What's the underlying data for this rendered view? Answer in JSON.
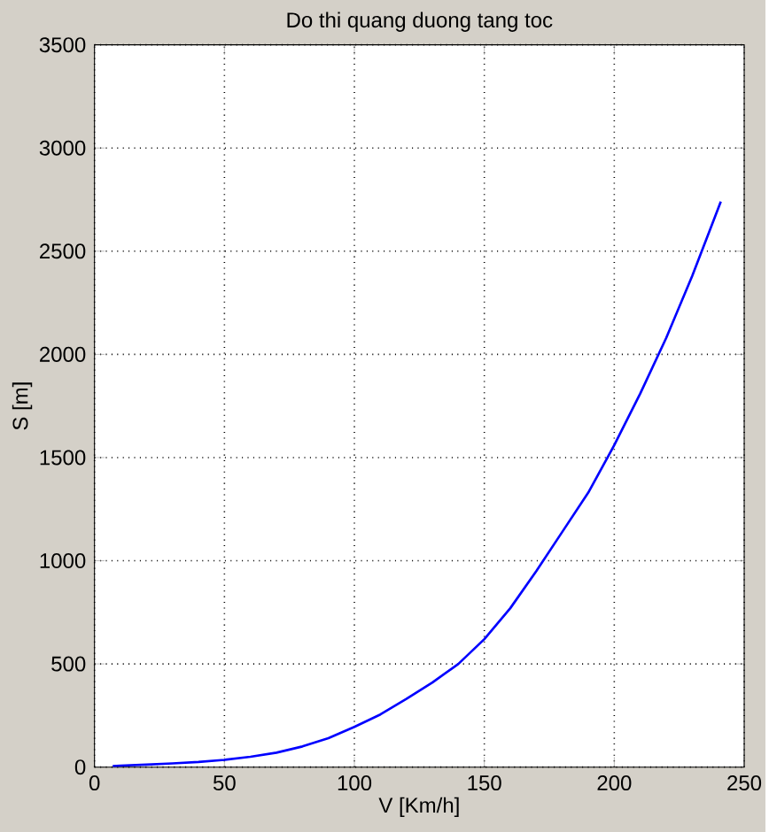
{
  "chart_data": {
    "type": "line",
    "title": "Do thi quang duong tang toc",
    "xlabel": "V [Km/h]",
    "ylabel": "S [m]",
    "x": [
      7,
      10,
      20,
      30,
      40,
      50,
      60,
      70,
      80,
      90,
      100,
      110,
      120,
      130,
      140,
      150,
      160,
      170,
      180,
      190,
      200,
      210,
      220,
      230,
      241
    ],
    "series": [
      {
        "color": "#0000ff",
        "values": [
          5,
          7,
          12,
          18,
          25,
          35,
          50,
          70,
          100,
          140,
          195,
          255,
          330,
          410,
          500,
          620,
          770,
          950,
          1140,
          1330,
          1560,
          1810,
          2080,
          2380,
          2740
        ]
      }
    ],
    "xlim": [
      0,
      250
    ],
    "ylim": [
      0,
      3500
    ],
    "xticks": [
      0,
      50,
      100,
      150,
      200,
      250
    ],
    "yticks": [
      0,
      500,
      1000,
      1500,
      2000,
      2500,
      3000,
      3500
    ],
    "grid": true,
    "line_style": "solid",
    "marker": "none",
    "legend": false
  }
}
